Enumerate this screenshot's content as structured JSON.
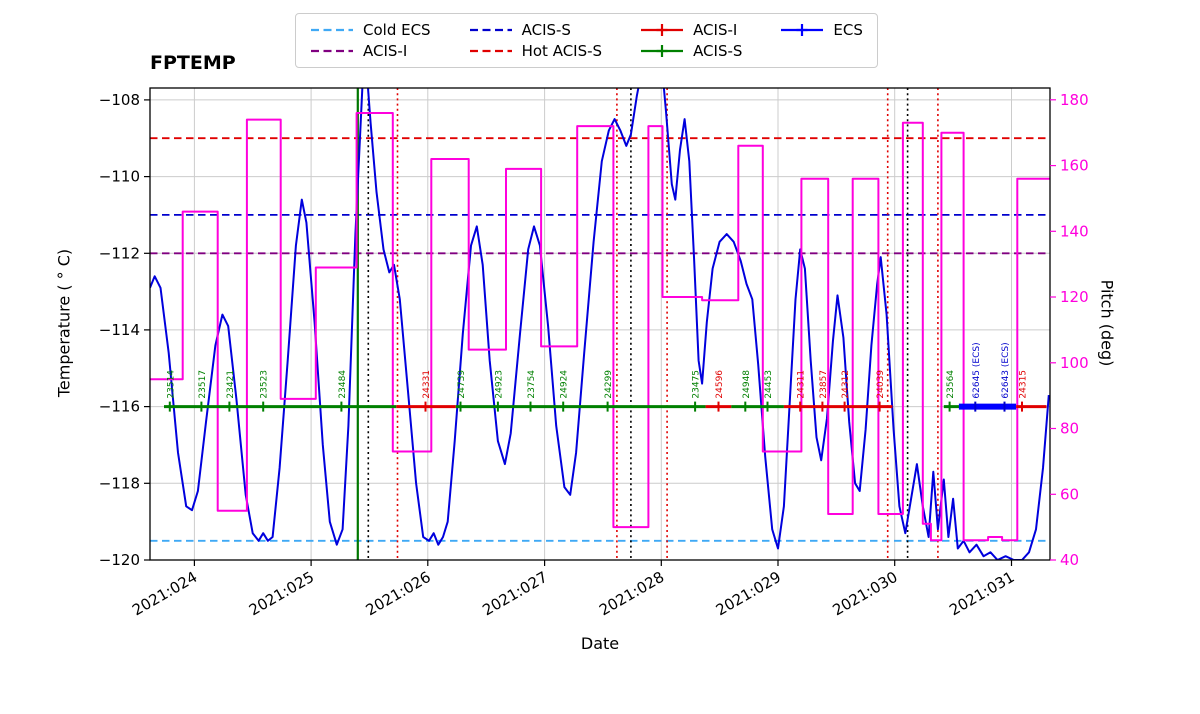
{
  "legend": {
    "items": [
      {
        "label": "Cold ECS",
        "color": "#3fa9f5",
        "style": "dashed"
      },
      {
        "label": "ACIS-S",
        "color": "#0000cd",
        "style": "dashed"
      },
      {
        "label": "ACIS-I",
        "color": "#e00000",
        "style": "solid-plus"
      },
      {
        "label": "ECS",
        "color": "#0000ff",
        "style": "solid-plus"
      },
      {
        "label": "ACIS-I",
        "color": "#800080",
        "style": "dashed"
      },
      {
        "label": "Hot ACIS-S",
        "color": "#e00000",
        "style": "dashed"
      },
      {
        "label": "ACIS-S",
        "color": "#008000",
        "style": "solid-plus"
      }
    ]
  },
  "chart_data": {
    "type": "line",
    "title": "FPTEMP",
    "xlabel": "Date",
    "ylabel": "Temperature ( ° C)",
    "y2label": "Pitch (deg)",
    "grid": true,
    "legend_position": "top",
    "pitch_color": "#ff00dd",
    "xlim": [
      23.62,
      31.33
    ],
    "ylim": [
      -120,
      -107.69
    ],
    "y2lim": [
      40,
      183.6
    ],
    "xticks": [
      {
        "x": 24,
        "label": "2021:024"
      },
      {
        "x": 25,
        "label": "2021:025"
      },
      {
        "x": 26,
        "label": "2021:026"
      },
      {
        "x": 27,
        "label": "2021:027"
      },
      {
        "x": 28,
        "label": "2021:028"
      },
      {
        "x": 29,
        "label": "2021:029"
      },
      {
        "x": 30,
        "label": "2021:030"
      },
      {
        "x": 31,
        "label": "2021:031"
      }
    ],
    "yticks": [
      {
        "y": -108,
        "label": "−108"
      },
      {
        "y": -110,
        "label": "−110"
      },
      {
        "y": -112,
        "label": "−112"
      },
      {
        "y": -114,
        "label": "−114"
      },
      {
        "y": -116,
        "label": "−116"
      },
      {
        "y": -118,
        "label": "−118"
      },
      {
        "y": -120,
        "label": "−120"
      }
    ],
    "y2ticks": [
      {
        "y": 180,
        "label": "180"
      },
      {
        "y": 160,
        "label": "160"
      },
      {
        "y": 140,
        "label": "140"
      },
      {
        "y": 120,
        "label": "120"
      },
      {
        "y": 100,
        "label": "100"
      },
      {
        "y": 80,
        "label": "80"
      },
      {
        "y": 60,
        "label": "60"
      },
      {
        "y": 40,
        "label": "40"
      }
    ],
    "ref_lines": [
      {
        "name": "Cold ECS",
        "y": -119.5,
        "color": "#3fa9f5"
      },
      {
        "name": "ACIS-I",
        "y": -112,
        "color": "#800080"
      },
      {
        "name": "ACIS-S",
        "y": -111,
        "color": "#0000cd"
      },
      {
        "name": "Hot ACIS-S",
        "y": -109,
        "color": "#e00000"
      }
    ],
    "v_lines": [
      {
        "x": 25.4,
        "color": "#007700",
        "style": "solid",
        "width": 2.2
      },
      {
        "x": 25.49,
        "color": "#000000",
        "style": "dotted",
        "width": 1.6
      },
      {
        "x": 25.74,
        "color": "#e00000",
        "style": "dotted",
        "width": 1.6
      },
      {
        "x": 27.62,
        "color": "#e00000",
        "style": "dotted",
        "width": 1.6
      },
      {
        "x": 27.74,
        "color": "#000000",
        "style": "dotted",
        "width": 1.6
      },
      {
        "x": 28.05,
        "color": "#e00000",
        "style": "dotted",
        "width": 1.6
      },
      {
        "x": 29.94,
        "color": "#e00000",
        "style": "dotted",
        "width": 1.6
      },
      {
        "x": 30.11,
        "color": "#000000",
        "style": "dotted",
        "width": 1.6
      },
      {
        "x": 30.37,
        "color": "#e00000",
        "style": "dotted",
        "width": 1.6
      }
    ],
    "series": [
      {
        "name": "FPTEMP",
        "axis": "temp",
        "color": "#0000dd",
        "width": 2,
        "line": "linear",
        "points": [
          [
            23.62,
            -112.9
          ],
          [
            23.66,
            -112.6
          ],
          [
            23.71,
            -112.9
          ],
          [
            23.78,
            -114.6
          ],
          [
            23.86,
            -117.2
          ],
          [
            23.93,
            -118.6
          ],
          [
            23.98,
            -118.7
          ],
          [
            24.03,
            -118.2
          ],
          [
            24.1,
            -116.4
          ],
          [
            24.18,
            -114.4
          ],
          [
            24.24,
            -113.6
          ],
          [
            24.29,
            -113.9
          ],
          [
            24.36,
            -115.8
          ],
          [
            24.44,
            -118.3
          ],
          [
            24.5,
            -119.3
          ],
          [
            24.55,
            -119.5
          ],
          [
            24.59,
            -119.3
          ],
          [
            24.63,
            -119.5
          ],
          [
            24.67,
            -119.4
          ],
          [
            24.73,
            -117.6
          ],
          [
            24.8,
            -114.8
          ],
          [
            24.87,
            -111.8
          ],
          [
            24.92,
            -110.6
          ],
          [
            24.96,
            -111.2
          ],
          [
            25.03,
            -113.8
          ],
          [
            25.1,
            -117.0
          ],
          [
            25.16,
            -119.0
          ],
          [
            25.22,
            -119.6
          ],
          [
            25.27,
            -119.2
          ],
          [
            25.32,
            -116.5
          ],
          [
            25.38,
            -111.5
          ],
          [
            25.44,
            -107.6
          ],
          [
            25.47,
            -107.0
          ],
          [
            25.51,
            -108.6
          ],
          [
            25.56,
            -110.4
          ],
          [
            25.62,
            -111.9
          ],
          [
            25.67,
            -112.5
          ],
          [
            25.71,
            -112.3
          ],
          [
            25.76,
            -113.2
          ],
          [
            25.83,
            -115.6
          ],
          [
            25.9,
            -118.0
          ],
          [
            25.96,
            -119.4
          ],
          [
            26.01,
            -119.5
          ],
          [
            26.05,
            -119.3
          ],
          [
            26.09,
            -119.6
          ],
          [
            26.13,
            -119.4
          ],
          [
            26.17,
            -119.0
          ],
          [
            26.23,
            -116.9
          ],
          [
            26.3,
            -114.1
          ],
          [
            26.37,
            -111.8
          ],
          [
            26.42,
            -111.3
          ],
          [
            26.47,
            -112.3
          ],
          [
            26.53,
            -114.8
          ],
          [
            26.6,
            -116.9
          ],
          [
            26.66,
            -117.5
          ],
          [
            26.71,
            -116.7
          ],
          [
            26.79,
            -114.1
          ],
          [
            26.86,
            -111.9
          ],
          [
            26.91,
            -111.3
          ],
          [
            26.96,
            -111.8
          ],
          [
            27.03,
            -113.9
          ],
          [
            27.1,
            -116.5
          ],
          [
            27.17,
            -118.1
          ],
          [
            27.22,
            -118.3
          ],
          [
            27.27,
            -117.2
          ],
          [
            27.34,
            -114.6
          ],
          [
            27.42,
            -111.7
          ],
          [
            27.49,
            -109.6
          ],
          [
            27.55,
            -108.8
          ],
          [
            27.6,
            -108.5
          ],
          [
            27.65,
            -108.8
          ],
          [
            27.7,
            -109.2
          ],
          [
            27.74,
            -108.9
          ],
          [
            27.79,
            -107.9
          ],
          [
            27.86,
            -106.8
          ],
          [
            27.93,
            -106.2
          ],
          [
            27.99,
            -106.6
          ],
          [
            28.04,
            -108.3
          ],
          [
            28.09,
            -110.2
          ],
          [
            28.12,
            -110.6
          ],
          [
            28.16,
            -109.3
          ],
          [
            28.2,
            -108.5
          ],
          [
            28.24,
            -109.6
          ],
          [
            28.28,
            -112.1
          ],
          [
            28.32,
            -114.8
          ],
          [
            28.35,
            -115.4
          ],
          [
            28.39,
            -113.8
          ],
          [
            28.44,
            -112.4
          ],
          [
            28.5,
            -111.7
          ],
          [
            28.56,
            -111.5
          ],
          [
            28.62,
            -111.7
          ],
          [
            28.68,
            -112.2
          ],
          [
            28.73,
            -112.8
          ],
          [
            28.78,
            -113.2
          ],
          [
            28.83,
            -114.9
          ],
          [
            28.89,
            -117.3
          ],
          [
            28.95,
            -119.2
          ],
          [
            29.0,
            -119.7
          ],
          [
            29.05,
            -118.6
          ],
          [
            29.1,
            -115.9
          ],
          [
            29.15,
            -113.2
          ],
          [
            29.19,
            -111.9
          ],
          [
            29.23,
            -112.4
          ],
          [
            29.28,
            -114.8
          ],
          [
            29.33,
            -116.8
          ],
          [
            29.37,
            -117.4
          ],
          [
            29.42,
            -116.3
          ],
          [
            29.47,
            -114.3
          ],
          [
            29.51,
            -113.1
          ],
          [
            29.56,
            -114.2
          ],
          [
            29.61,
            -116.4
          ],
          [
            29.66,
            -118.0
          ],
          [
            29.7,
            -118.2
          ],
          [
            29.75,
            -116.6
          ],
          [
            29.8,
            -114.4
          ],
          [
            29.85,
            -112.8
          ],
          [
            29.88,
            -112.1
          ],
          [
            29.93,
            -113.6
          ],
          [
            29.99,
            -116.6
          ],
          [
            30.04,
            -118.6
          ],
          [
            30.09,
            -119.3
          ],
          [
            30.14,
            -118.4
          ],
          [
            30.19,
            -117.5
          ],
          [
            30.24,
            -118.6
          ],
          [
            30.29,
            -119.4
          ],
          [
            30.33,
            -117.7
          ],
          [
            30.37,
            -119.2
          ],
          [
            30.42,
            -117.9
          ],
          [
            30.46,
            -119.4
          ],
          [
            30.5,
            -118.4
          ],
          [
            30.54,
            -119.7
          ],
          [
            30.59,
            -119.5
          ],
          [
            30.64,
            -119.8
          ],
          [
            30.7,
            -119.6
          ],
          [
            30.76,
            -119.9
          ],
          [
            30.82,
            -119.8
          ],
          [
            30.88,
            -120.0
          ],
          [
            30.95,
            -119.9
          ],
          [
            31.02,
            -120.0
          ],
          [
            31.09,
            -120.0
          ],
          [
            31.15,
            -119.8
          ],
          [
            31.21,
            -119.2
          ],
          [
            31.27,
            -117.6
          ],
          [
            31.32,
            -115.7
          ]
        ]
      },
      {
        "name": "Pitch",
        "axis": "pitch",
        "color": "#ff00dd",
        "width": 2,
        "line": "step",
        "points": [
          [
            23.62,
            95
          ],
          [
            23.9,
            146
          ],
          [
            24.2,
            55
          ],
          [
            24.45,
            174
          ],
          [
            24.74,
            89
          ],
          [
            25.04,
            129
          ],
          [
            25.39,
            176
          ],
          [
            25.7,
            73
          ],
          [
            26.03,
            162
          ],
          [
            26.35,
            104
          ],
          [
            26.67,
            159
          ],
          [
            26.97,
            105
          ],
          [
            27.28,
            172
          ],
          [
            27.59,
            50
          ],
          [
            27.89,
            172
          ],
          [
            28.01,
            120
          ],
          [
            28.35,
            119
          ],
          [
            28.66,
            166
          ],
          [
            28.87,
            73
          ],
          [
            29.2,
            156
          ],
          [
            29.43,
            54
          ],
          [
            29.64,
            156
          ],
          [
            29.86,
            54
          ],
          [
            30.07,
            173
          ],
          [
            30.24,
            51
          ],
          [
            30.31,
            46
          ],
          [
            30.4,
            170
          ],
          [
            30.59,
            46
          ],
          [
            30.8,
            47
          ],
          [
            30.92,
            46
          ],
          [
            31.05,
            156
          ]
        ]
      }
    ],
    "obs_y": -116,
    "obs_segments": [
      {
        "x1": 23.74,
        "x2": 25.73,
        "color": "#008000",
        "width": 3
      },
      {
        "x1": 25.73,
        "x2": 26.24,
        "color": "#e00000",
        "width": 3
      },
      {
        "x1": 26.24,
        "x2": 28.38,
        "color": "#008000",
        "width": 3
      },
      {
        "x1": 28.38,
        "x2": 28.6,
        "color": "#e00000",
        "width": 3
      },
      {
        "x1": 28.6,
        "x2": 29.05,
        "color": "#008000",
        "width": 3
      },
      {
        "x1": 29.05,
        "x2": 29.98,
        "color": "#e00000",
        "width": 3
      },
      {
        "x1": 30.42,
        "x2": 30.62,
        "color": "#008000",
        "width": 3
      },
      {
        "x1": 30.55,
        "x2": 31.04,
        "color": "#0000ff",
        "width": 6
      },
      {
        "x1": 31.04,
        "x2": 31.3,
        "color": "#e00000",
        "width": 3
      }
    ],
    "obs_markers": [
      {
        "x": 23.79,
        "label": "23514",
        "color": "#008000"
      },
      {
        "x": 24.06,
        "label": "23517",
        "color": "#008000"
      },
      {
        "x": 24.3,
        "label": "23421",
        "color": "#008000"
      },
      {
        "x": 24.59,
        "label": "23523",
        "color": "#008000"
      },
      {
        "x": 25.26,
        "label": "23484",
        "color": "#008000"
      },
      {
        "x": 25.98,
        "label": "24331",
        "color": "#e00000"
      },
      {
        "x": 26.28,
        "label": "24739",
        "color": "#008000"
      },
      {
        "x": 26.6,
        "label": "24923",
        "color": "#008000"
      },
      {
        "x": 26.88,
        "label": "23754",
        "color": "#008000"
      },
      {
        "x": 27.16,
        "label": "24924",
        "color": "#008000"
      },
      {
        "x": 27.54,
        "label": "24299",
        "color": "#008000"
      },
      {
        "x": 28.29,
        "label": "23475",
        "color": "#008000"
      },
      {
        "x": 28.49,
        "label": "24596",
        "color": "#e00000"
      },
      {
        "x": 28.72,
        "label": "24948",
        "color": "#008000"
      },
      {
        "x": 28.91,
        "label": "24453",
        "color": "#008000"
      },
      {
        "x": 29.19,
        "label": "24311",
        "color": "#e00000"
      },
      {
        "x": 29.38,
        "label": "23857",
        "color": "#e00000"
      },
      {
        "x": 29.57,
        "label": "24312",
        "color": "#e00000"
      },
      {
        "x": 29.87,
        "label": "24039",
        "color": "#e00000"
      },
      {
        "x": 30.47,
        "label": "23564",
        "color": "#008000"
      },
      {
        "x": 30.69,
        "label": "62645 (ECS)",
        "color": "#0000cc"
      },
      {
        "x": 30.94,
        "label": "62643 (ECS)",
        "color": "#0000cc"
      },
      {
        "x": 31.09,
        "label": "24315",
        "color": "#e00000"
      }
    ]
  }
}
